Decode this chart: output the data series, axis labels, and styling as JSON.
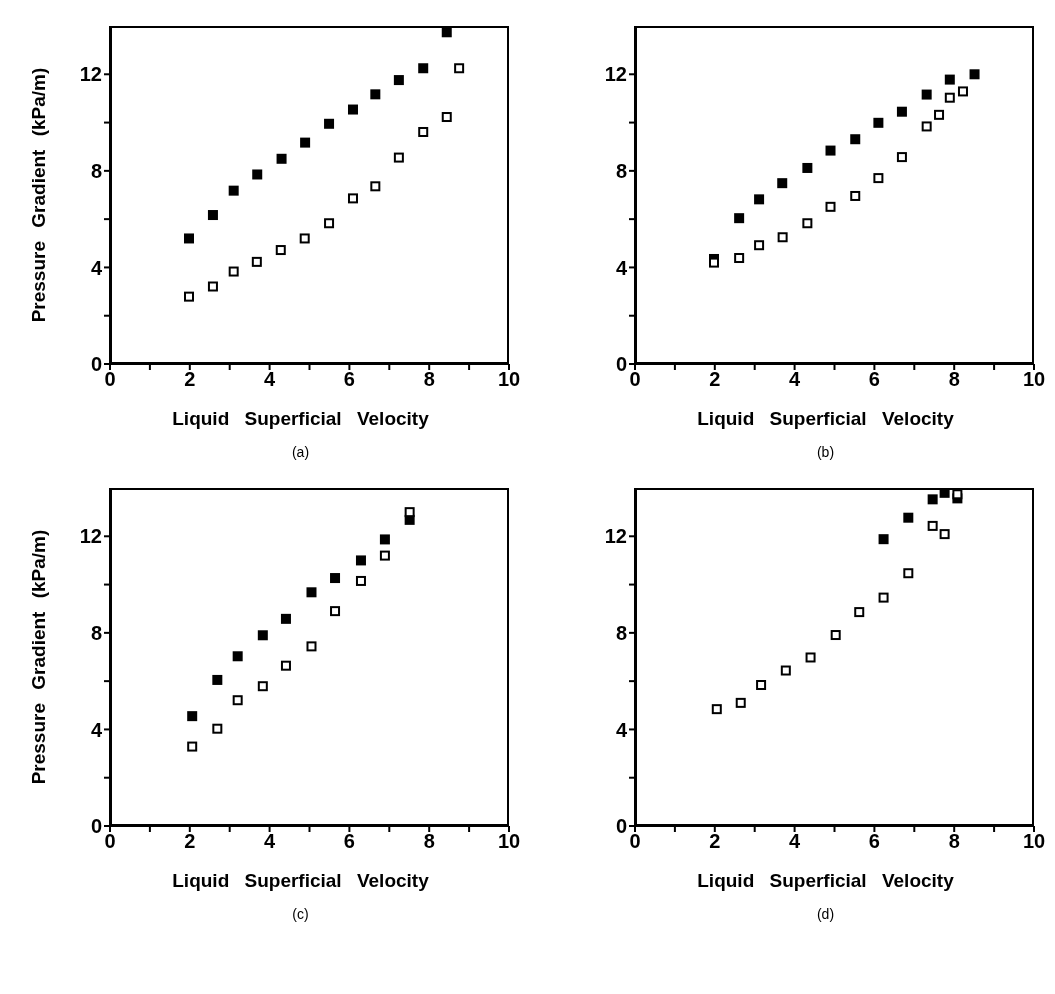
{
  "chart_data": [
    {
      "type": "scatter",
      "title": "(a)",
      "xlabel": "Liquid Superficial Velocity",
      "ylabel": "Pressure Gradient (kPa/m)",
      "marker": "square",
      "xlim": [
        0,
        10
      ],
      "ylim": [
        0,
        14
      ],
      "xticks": [
        0,
        {
          "value": 1,
          "label": null
        },
        2,
        {
          "value": 3,
          "label": null
        },
        4,
        {
          "value": 5,
          "label": null
        },
        6,
        {
          "value": 7,
          "label": null
        },
        8,
        {
          "value": 9,
          "label": null
        },
        10
      ],
      "yticks": [
        0,
        {
          "value": 2,
          "label": null
        },
        4,
        {
          "value": 6,
          "label": null
        },
        8,
        {
          "value": 10,
          "label": null
        },
        12
      ],
      "series": [
        {
          "color": "#000000",
          "x": [
            1.98,
            2.58,
            3.1,
            3.69,
            4.3,
            4.89,
            5.49,
            6.09,
            6.65,
            7.24,
            7.85,
            8.44
          ],
          "values": [
            5.2,
            6.17,
            7.18,
            7.85,
            8.5,
            9.17,
            9.95,
            10.54,
            11.17,
            11.76,
            12.25,
            13.74
          ]
        },
        {
          "color": "#ffffff",
          "x": [
            1.98,
            2.58,
            3.1,
            3.68,
            4.28,
            4.88,
            5.49,
            6.09,
            6.65,
            7.24,
            7.85,
            8.44,
            8.75
          ],
          "values": [
            2.79,
            3.21,
            3.83,
            4.23,
            4.72,
            5.2,
            5.83,
            6.86,
            7.36,
            8.55,
            9.61,
            10.23,
            12.25
          ]
        }
      ]
    },
    {
      "type": "scatter",
      "title": "(b)",
      "xlabel": "Liquid Superficial Velocity",
      "marker": "square",
      "xlim": [
        0,
        10
      ],
      "ylim": [
        0,
        14
      ],
      "xticks": [
        0,
        {
          "value": 1,
          "label": null
        },
        2,
        {
          "value": 3,
          "label": null
        },
        4,
        {
          "value": 5,
          "label": null
        },
        6,
        {
          "value": 7,
          "label": null
        },
        8,
        {
          "value": 9,
          "label": null
        },
        10
      ],
      "yticks": [
        0,
        {
          "value": 2,
          "label": null
        },
        4,
        {
          "value": 6,
          "label": null
        },
        8,
        {
          "value": 10,
          "label": null
        },
        12
      ],
      "series": [
        {
          "color": "#000000",
          "x": [
            1.98,
            2.61,
            3.11,
            3.69,
            4.32,
            4.9,
            5.52,
            6.1,
            6.69,
            7.31,
            7.89,
            8.51
          ],
          "values": [
            4.35,
            6.04,
            6.82,
            7.49,
            8.12,
            8.84,
            9.31,
            9.99,
            10.45,
            11.16,
            11.78,
            12.0
          ]
        },
        {
          "color": "#ffffff",
          "x": [
            1.98,
            2.61,
            3.11,
            3.7,
            4.32,
            4.9,
            5.52,
            6.1,
            6.69,
            7.31,
            7.62,
            7.89,
            8.22
          ],
          "values": [
            4.2,
            4.39,
            4.92,
            5.25,
            5.83,
            6.51,
            6.96,
            7.7,
            8.57,
            9.84,
            10.32,
            11.03,
            11.29
          ]
        }
      ]
    },
    {
      "type": "scatter",
      "title": "(c)",
      "xlabel": "Liquid Superficial Velocity",
      "ylabel": "Pressure Gradient (kPa/m)",
      "marker": "square",
      "xlim": [
        0,
        10
      ],
      "ylim": [
        0,
        14
      ],
      "xticks": [
        0,
        {
          "value": 1,
          "label": null
        },
        2,
        {
          "value": 3,
          "label": null
        },
        4,
        {
          "value": 5,
          "label": null
        },
        6,
        {
          "value": 7,
          "label": null
        },
        8,
        {
          "value": 9,
          "label": null
        },
        10
      ],
      "yticks": [
        0,
        {
          "value": 2,
          "label": null
        },
        4,
        {
          "value": 6,
          "label": null
        },
        8,
        {
          "value": 10,
          "label": null
        },
        12
      ],
      "series": [
        {
          "color": "#000000",
          "x": [
            2.06,
            2.69,
            3.2,
            3.83,
            4.41,
            5.05,
            5.64,
            6.29,
            6.89,
            7.51
          ],
          "values": [
            4.55,
            6.05,
            7.03,
            7.9,
            8.58,
            9.68,
            10.27,
            11.0,
            11.87,
            12.68
          ]
        },
        {
          "color": "#ffffff",
          "x": [
            2.06,
            2.69,
            3.2,
            3.83,
            4.41,
            5.05,
            5.64,
            6.29,
            6.89,
            7.51
          ],
          "values": [
            3.29,
            4.03,
            5.21,
            5.79,
            6.64,
            7.44,
            8.9,
            10.15,
            11.2,
            13.0
          ]
        }
      ]
    },
    {
      "type": "scatter",
      "title": "(d)",
      "xlabel": "Liquid Superficial Velocity",
      "marker": "square",
      "xlim": [
        0,
        10
      ],
      "ylim": [
        0,
        14
      ],
      "xticks": [
        0,
        {
          "value": 1,
          "label": null
        },
        2,
        {
          "value": 3,
          "label": null
        },
        4,
        {
          "value": 5,
          "label": null
        },
        6,
        {
          "value": 7,
          "label": null
        },
        8,
        {
          "value": 9,
          "label": null
        },
        10
      ],
      "yticks": [
        0,
        {
          "value": 2,
          "label": null
        },
        4,
        {
          "value": 6,
          "label": null
        },
        8,
        {
          "value": 10,
          "label": null
        },
        12
      ],
      "series": [
        {
          "color": "#000000",
          "x": [
            6.23,
            6.85,
            7.46,
            7.76,
            8.08
          ],
          "values": [
            11.88,
            12.77,
            13.53,
            13.8,
            13.57
          ]
        },
        {
          "color": "#ffffff",
          "x": [
            2.05,
            2.65,
            3.16,
            3.78,
            4.4,
            5.03,
            5.62,
            6.23,
            6.85,
            7.46,
            7.76,
            8.08
          ],
          "values": [
            4.84,
            5.1,
            5.84,
            6.44,
            6.98,
            7.91,
            8.86,
            9.46,
            10.47,
            12.43,
            12.09,
            13.74
          ]
        }
      ]
    }
  ]
}
